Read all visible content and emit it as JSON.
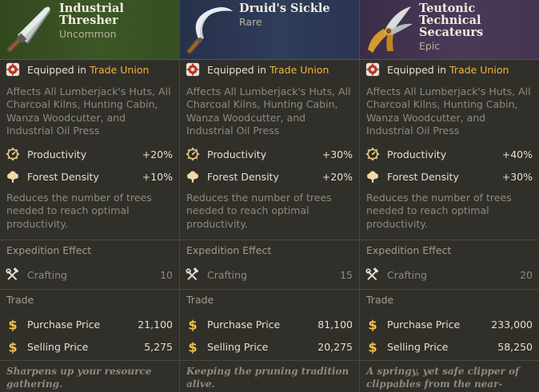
{
  "cards": [
    {
      "name": "Industrial Thresher",
      "rarity": "Uncommon",
      "equipped_prefix": "Equipped in",
      "equipped_place": "Trade Union",
      "affects": "Affects All Lumberjack's Huts, All Charcoal Kilns, Hunting Cabin, Wanza Woodcutter, and Industrial Oil Press",
      "productivity_label": "Productivity",
      "productivity_value": "+20%",
      "forest_label": "Forest Density",
      "forest_value": "+10%",
      "effect_desc": "Reduces the number of trees needed to reach optimal productivity.",
      "expedition_title": "Expedition Effect",
      "crafting_label": "Crafting",
      "crafting_value": "10",
      "trade_title": "Trade",
      "purchase_label": "Purchase Price",
      "purchase_value": "21,100",
      "selling_label": "Selling Price",
      "selling_value": "5,275",
      "flavor": "Sharpens up your resource gathering."
    },
    {
      "name": "Druid's Sickle",
      "rarity": "Rare",
      "equipped_prefix": "Equipped in",
      "equipped_place": "Trade Union",
      "affects": "Affects All Lumberjack's Huts, All Charcoal Kilns, Hunting Cabin, Wanza Woodcutter, and Industrial Oil Press",
      "productivity_label": "Productivity",
      "productivity_value": "+30%",
      "forest_label": "Forest Density",
      "forest_value": "+20%",
      "effect_desc": "Reduces the number of trees needed to reach optimal productivity.",
      "expedition_title": "Expedition Effect",
      "crafting_label": "Crafting",
      "crafting_value": "15",
      "trade_title": "Trade",
      "purchase_label": "Purchase Price",
      "purchase_value": "81,100",
      "selling_label": "Selling Price",
      "selling_value": "20,275",
      "flavor": "Keeping the pruning tradition alive."
    },
    {
      "name": "Teutonic Technical Secateurs",
      "rarity": "Epic",
      "equipped_prefix": "Equipped in",
      "equipped_place": "Trade Union",
      "affects": "Affects All Lumberjack's Huts, All Charcoal Kilns, Hunting Cabin, Wanza Woodcutter, and Industrial Oil Press",
      "productivity_label": "Productivity",
      "productivity_value": "+40%",
      "forest_label": "Forest Density",
      "forest_value": "+30%",
      "effect_desc": "Reduces the number of trees needed to reach optimal productivity.",
      "expedition_title": "Expedition Effect",
      "crafting_label": "Crafting",
      "crafting_value": "20",
      "trade_title": "Trade",
      "purchase_label": "Purchase Price",
      "purchase_value": "233,000",
      "selling_label": "Selling Price",
      "selling_value": "58,250",
      "flavor": "A springy, yet safe clipper of clippables from the near-future!"
    }
  ],
  "icons": {
    "item_images": [
      "thresher-blade-icon",
      "sickle-icon",
      "secateurs-icon"
    ],
    "equipped": "trade-union-cog-icon",
    "productivity": "cog-gauge-icon",
    "forest": "tree-icon",
    "crafting": "hammer-wrench-icon",
    "currency": "dollar-icon"
  },
  "colors": {
    "highlight": "#f2b63a",
    "uncommon": "#3d5626",
    "rare": "#2f3c5a",
    "epic": "#4a3a58"
  }
}
